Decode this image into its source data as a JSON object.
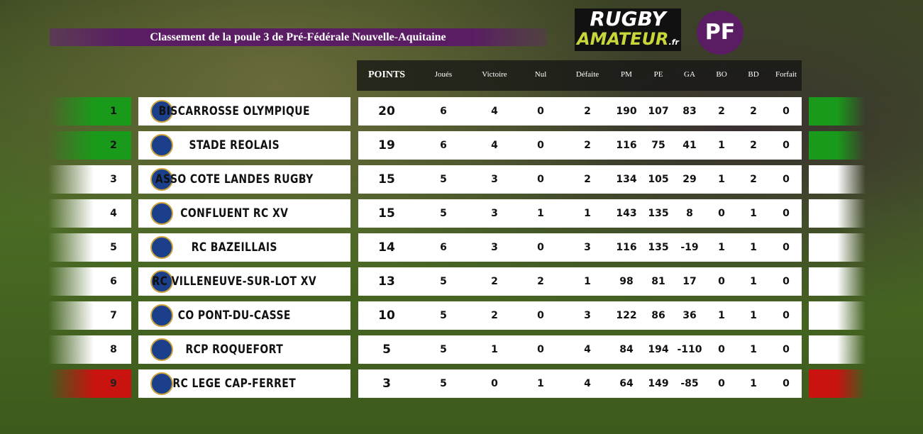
{
  "header": {
    "title": "Classement de la poule 3 de Pré-Fédérale Nouvelle-Aquitaine",
    "logo_top": "RUGBY",
    "logo_bottom": "AMATEUR",
    "logo_suffix": ".fr",
    "badge": "PF"
  },
  "table": {
    "columns": [
      "POINTS",
      "Joués",
      "Victoire",
      "Nul",
      "Défaite",
      "PM",
      "PE",
      "GA",
      "BO",
      "BD",
      "Forfait"
    ],
    "row_colors": [
      "#1a9a1a",
      "#1a9a1a",
      "#ffffff",
      "#ffffff",
      "#ffffff",
      "#ffffff",
      "#ffffff",
      "#ffffff",
      "#c8130f"
    ],
    "rows": [
      [
        1,
        "BISCARROSSE OLYMPIQUE",
        20,
        6,
        4,
        0,
        2,
        190,
        107,
        83,
        2,
        2,
        0
      ],
      [
        2,
        "STADE REOLAIS",
        19,
        6,
        4,
        0,
        2,
        116,
        75,
        41,
        1,
        2,
        0
      ],
      [
        3,
        "ASSO COTE LANDES RUGBY",
        15,
        5,
        3,
        0,
        2,
        134,
        105,
        29,
        1,
        2,
        0
      ],
      [
        4,
        "CONFLUENT RC XV",
        15,
        5,
        3,
        1,
        1,
        143,
        135,
        8,
        0,
        1,
        0
      ],
      [
        5,
        "RC BAZEILLAIS",
        14,
        6,
        3,
        0,
        3,
        116,
        135,
        -19,
        1,
        1,
        0
      ],
      [
        6,
        "RC VILLENEUVE-SUR-LOT XV",
        13,
        5,
        2,
        2,
        1,
        98,
        81,
        17,
        0,
        1,
        0
      ],
      [
        7,
        "CO PONT-DU-CASSE",
        10,
        5,
        2,
        0,
        3,
        122,
        86,
        36,
        1,
        1,
        0
      ],
      [
        8,
        "RCP ROQUEFORT",
        5,
        5,
        1,
        0,
        4,
        84,
        194,
        -110,
        0,
        1,
        0
      ],
      [
        9,
        "RC LEGE CAP-FERRET",
        3,
        5,
        0,
        1,
        4,
        64,
        149,
        -85,
        0,
        1,
        0
      ]
    ]
  }
}
